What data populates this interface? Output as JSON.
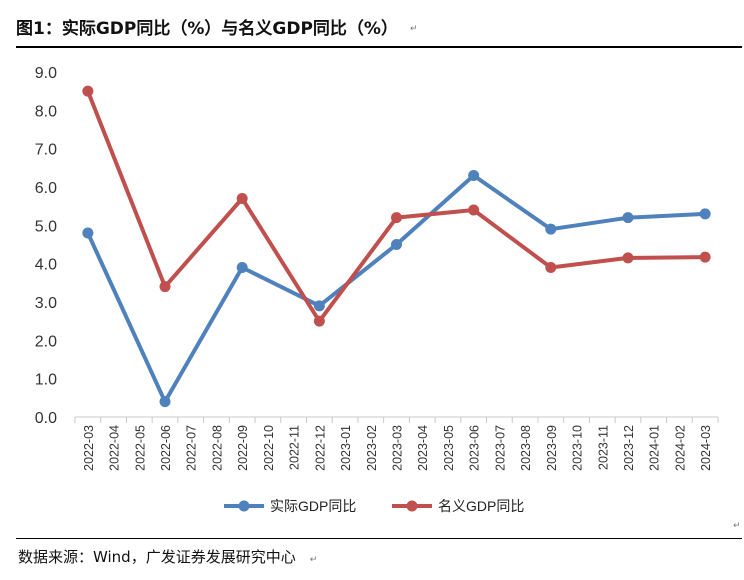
{
  "title": "图1：实际GDP同比（%）与名义GDP同比（%）",
  "paragraph_mark": "↵",
  "source": "数据来源：Wind，广发证券发展研究中心",
  "chart_data": {
    "type": "line",
    "title": "图1：实际GDP同比（%）与名义GDP同比（%）",
    "categories": [
      "2022-03",
      "2022-04",
      "2022-05",
      "2022-06",
      "2022-07",
      "2022-08",
      "2022-09",
      "2022-10",
      "2022-11",
      "2022-12",
      "2023-01",
      "2023-02",
      "2023-03",
      "2023-04",
      "2023-05",
      "2023-06",
      "2023-07",
      "2023-08",
      "2023-09",
      "2023-10",
      "2023-11",
      "2023-12",
      "2024-01",
      "2024-02",
      "2024-03"
    ],
    "y_ticks": [
      "0.0",
      "1.0",
      "2.0",
      "3.0",
      "4.0",
      "5.0",
      "6.0",
      "7.0",
      "8.0",
      "9.0"
    ],
    "ylim": [
      0,
      9
    ],
    "series": [
      {
        "name": "实际GDP同比",
        "color": "#4f81bd",
        "values": [
          4.8,
          null,
          null,
          0.4,
          null,
          null,
          3.9,
          null,
          null,
          2.9,
          null,
          null,
          4.5,
          null,
          null,
          6.3,
          null,
          null,
          4.9,
          null,
          null,
          5.2,
          null,
          null,
          5.3
        ]
      },
      {
        "name": "名义GDP同比",
        "color": "#c0504d",
        "values": [
          8.5,
          null,
          null,
          3.4,
          null,
          null,
          5.7,
          null,
          null,
          2.5,
          null,
          null,
          5.2,
          null,
          null,
          5.4,
          null,
          null,
          3.9,
          null,
          null,
          4.15,
          null,
          null,
          4.17
        ]
      }
    ],
    "legend_position": "bottom-center",
    "grid": false
  }
}
